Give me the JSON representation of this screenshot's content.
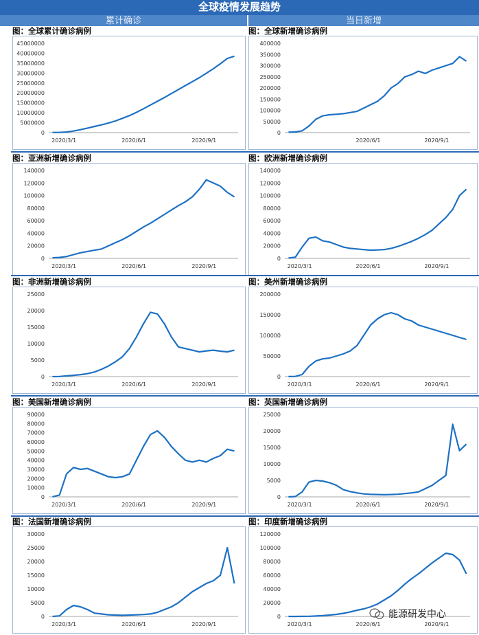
{
  "page": {
    "title": "全球疫情发展趋势",
    "left_header": "累计确诊",
    "right_header": "当日新增",
    "watermark": "能源研发中心"
  },
  "colors": {
    "line": "#1d71c4",
    "header": "#2b68b5",
    "subheader": "#4d86c9",
    "border": "#9fb6d5"
  },
  "chart_data": [
    {
      "id": "global-cumulative",
      "type": "line",
      "title": "图：全球累计确诊病例",
      "yticks": [
        0,
        5000000,
        10000000,
        15000000,
        20000000,
        25000000,
        30000000,
        35000000,
        40000000,
        45000000
      ],
      "ylim": [
        0,
        45000000
      ],
      "xticks": [
        "2020/3/1",
        "2020/6/1",
        "2020/9/1"
      ],
      "series": [
        {
          "name": "累计确诊",
          "values": [
            90000,
            120000,
            300000,
            800000,
            1500000,
            2300000,
            3100000,
            3900000,
            4800000,
            5900000,
            7200000,
            8600000,
            10200000,
            12000000,
            13900000,
            15800000,
            17700000,
            19700000,
            21700000,
            23700000,
            25700000,
            27700000,
            29900000,
            32200000,
            34700000,
            37400000,
            38500000
          ]
        }
      ]
    },
    {
      "id": "global-daily",
      "type": "line",
      "title": "图：全球新增确诊病例",
      "yticks": [
        0,
        50000,
        100000,
        150000,
        200000,
        250000,
        300000,
        350000,
        400000
      ],
      "ylim": [
        0,
        400000
      ],
      "xticks": [
        "2020/6/1",
        "2020/9/1"
      ],
      "series": [
        {
          "name": "新增",
          "values": [
            2000,
            3000,
            8000,
            30000,
            60000,
            75000,
            80000,
            82000,
            85000,
            90000,
            95000,
            110000,
            125000,
            140000,
            165000,
            200000,
            220000,
            250000,
            260000,
            275000,
            265000,
            280000,
            290000,
            300000,
            310000,
            340000,
            320000
          ]
        }
      ]
    },
    {
      "id": "asia-daily",
      "type": "line",
      "title": "图：亚洲新增确诊病例",
      "yticks": [
        0,
        20000,
        40000,
        60000,
        80000,
        100000,
        120000,
        140000
      ],
      "ylim": [
        0,
        140000
      ],
      "xticks": [
        "2020/3/1",
        "2020/6/1",
        "2020/9/1"
      ],
      "series": [
        {
          "name": "新增",
          "values": [
            1000,
            1500,
            3000,
            6000,
            9000,
            11000,
            13000,
            15000,
            20000,
            25000,
            30000,
            36000,
            43000,
            50000,
            56000,
            63000,
            70000,
            77000,
            84000,
            90000,
            98000,
            110000,
            125000,
            120000,
            115000,
            105000,
            98000
          ]
        }
      ]
    },
    {
      "id": "europe-daily",
      "type": "line",
      "title": "图：欧洲新增确诊病例",
      "yticks": [
        0,
        20000,
        40000,
        60000,
        80000,
        100000,
        120000,
        140000
      ],
      "ylim": [
        0,
        140000
      ],
      "xticks": [
        "2020/3/1",
        "2020/6/1",
        "2020/9/1"
      ],
      "series": [
        {
          "name": "新增",
          "values": [
            500,
            2000,
            18000,
            32000,
            34000,
            28000,
            26000,
            22000,
            18000,
            16000,
            15000,
            14000,
            13000,
            13500,
            14000,
            16000,
            19000,
            23000,
            27000,
            32000,
            38000,
            45000,
            55000,
            65000,
            78000,
            100000,
            110000
          ]
        }
      ]
    },
    {
      "id": "africa-daily",
      "type": "line",
      "title": "图：非洲新增确诊病例",
      "yticks": [
        0,
        5000,
        10000,
        15000,
        20000,
        25000
      ],
      "ylim": [
        0,
        25000
      ],
      "xticks": [
        "2020/3/1",
        "2020/6/1",
        "2020/9/1"
      ],
      "series": [
        {
          "name": "新增",
          "values": [
            0,
            50,
            200,
            400,
            600,
            900,
            1400,
            2200,
            3200,
            4500,
            6000,
            8500,
            12000,
            16000,
            19500,
            19000,
            16000,
            12000,
            9000,
            8500,
            8000,
            7500,
            7800,
            8000,
            7700,
            7500,
            8000
          ]
        }
      ]
    },
    {
      "id": "americas-daily",
      "type": "line",
      "title": "图：美州新增确诊病例",
      "yticks": [
        0,
        50000,
        100000,
        150000,
        200000
      ],
      "ylim": [
        0,
        200000
      ],
      "xticks": [
        "2020/3/1",
        "2020/6/1",
        "2020/9/1"
      ],
      "series": [
        {
          "name": "新增",
          "values": [
            200,
            500,
            5000,
            25000,
            38000,
            43000,
            45000,
            50000,
            55000,
            62000,
            75000,
            100000,
            125000,
            140000,
            150000,
            155000,
            150000,
            140000,
            135000,
            125000,
            120000,
            115000,
            110000,
            105000,
            100000,
            95000,
            90000
          ]
        }
      ]
    },
    {
      "id": "usa-daily",
      "type": "line",
      "title": "图：美国新增确诊病例",
      "yticks": [
        0,
        10000,
        20000,
        30000,
        40000,
        50000,
        60000,
        70000,
        80000,
        90000
      ],
      "ylim": [
        0,
        90000
      ],
      "xticks": [
        "2020/3/1",
        "2020/6/1",
        "2020/9/1"
      ],
      "series": [
        {
          "name": "新增",
          "values": [
            100,
            2000,
            25000,
            32000,
            30000,
            31000,
            28000,
            25000,
            22000,
            21000,
            22000,
            25000,
            40000,
            55000,
            68000,
            72000,
            65000,
            55000,
            47000,
            40000,
            38000,
            40000,
            38000,
            42000,
            45000,
            52000,
            50000
          ]
        }
      ]
    },
    {
      "id": "uk-daily",
      "type": "line",
      "title": "图：英国新增确诊病例",
      "yticks": [
        0,
        5000,
        10000,
        15000,
        20000,
        25000
      ],
      "ylim": [
        0,
        25000
      ],
      "xticks": [
        "2020/3/1",
        "2020/6/1",
        "2020/9/1"
      ],
      "series": [
        {
          "name": "新增",
          "values": [
            0,
            100,
            1500,
            4500,
            5000,
            4800,
            4300,
            3500,
            2200,
            1600,
            1200,
            900,
            750,
            700,
            650,
            700,
            800,
            1000,
            1200,
            1500,
            2500,
            3500,
            5000,
            6500,
            22000,
            14000,
            16000
          ]
        }
      ]
    },
    {
      "id": "france-daily",
      "type": "line",
      "title": "图：法国新增确诊病例",
      "yticks": [
        0,
        5000,
        10000,
        15000,
        20000,
        25000,
        30000
      ],
      "ylim": [
        0,
        30000
      ],
      "xticks": [
        "2020/3/1",
        "2020/6/1",
        "2020/9/1"
      ],
      "series": [
        {
          "name": "新增",
          "values": [
            0,
            200,
            2500,
            4000,
            3500,
            2500,
            1200,
            900,
            600,
            500,
            400,
            500,
            600,
            700,
            900,
            1500,
            2500,
            3500,
            5000,
            7000,
            9000,
            10500,
            12000,
            13000,
            15000,
            25000,
            12000
          ]
        }
      ]
    },
    {
      "id": "india-daily",
      "type": "line",
      "title": "图：印度新增确诊病例",
      "yticks": [
        0,
        20000,
        40000,
        60000,
        80000,
        100000,
        120000
      ],
      "ylim": [
        0,
        120000
      ],
      "xticks": [
        "2020/3/1",
        "2020/6/1",
        "2020/9/1"
      ],
      "series": [
        {
          "name": "新增",
          "values": [
            0,
            0,
            50,
            200,
            600,
            1200,
            2000,
            3000,
            4500,
            6500,
            9000,
            11000,
            14000,
            18000,
            24000,
            30000,
            38000,
            47000,
            55000,
            62000,
            70000,
            78000,
            85000,
            92000,
            90000,
            82000,
            62000
          ]
        }
      ]
    }
  ]
}
